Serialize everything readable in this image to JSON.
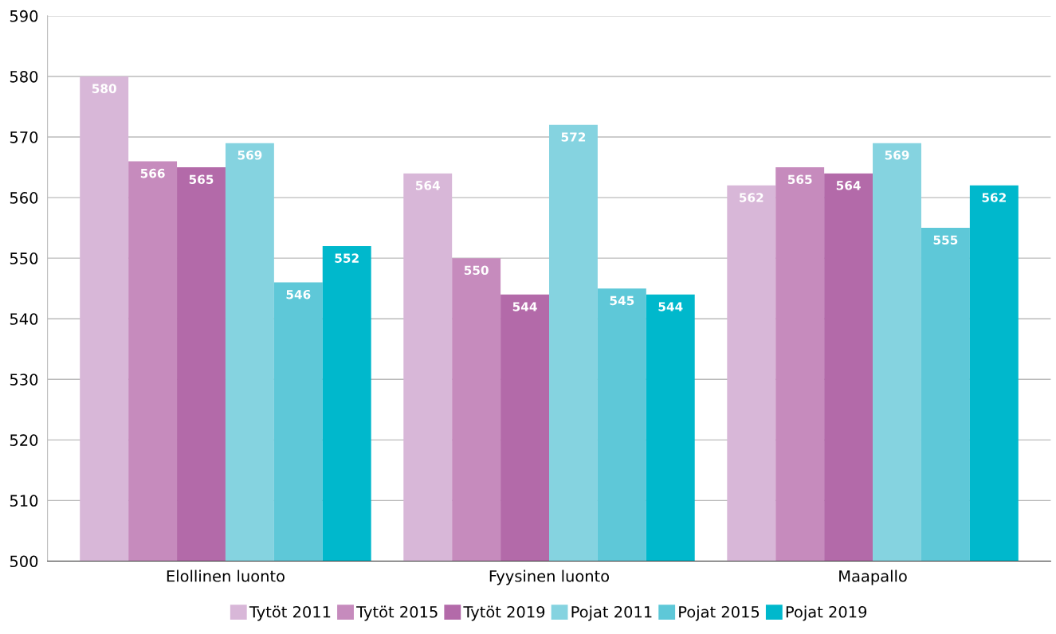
{
  "chart_data": {
    "type": "bar",
    "categories": [
      "Elollinen luonto",
      "Fyysinen luonto",
      "Maapallo"
    ],
    "series": [
      {
        "name": "Tytöt 2011",
        "color": "#d8b7d8",
        "values": [
          580,
          564,
          562
        ]
      },
      {
        "name": "Tytöt 2015",
        "color": "#c68bbd",
        "values": [
          566,
          550,
          565
        ]
      },
      {
        "name": "Tytöt 2019",
        "color": "#b36aa9",
        "values": [
          565,
          544,
          564
        ]
      },
      {
        "name": "Pojat 2011",
        "color": "#85d3e0",
        "values": [
          569,
          572,
          569
        ]
      },
      {
        "name": "Pojat 2015",
        "color": "#5ec8d8",
        "values": [
          546,
          545,
          555
        ]
      },
      {
        "name": "Pojat 2019",
        "color": "#00b8cc",
        "values": [
          552,
          544,
          562
        ]
      }
    ],
    "ylim": [
      500,
      590
    ],
    "yticks": [
      500,
      510,
      520,
      530,
      540,
      550,
      560,
      570,
      580,
      590
    ],
    "grid": "y",
    "legend": "bottom",
    "data_labels": true
  }
}
